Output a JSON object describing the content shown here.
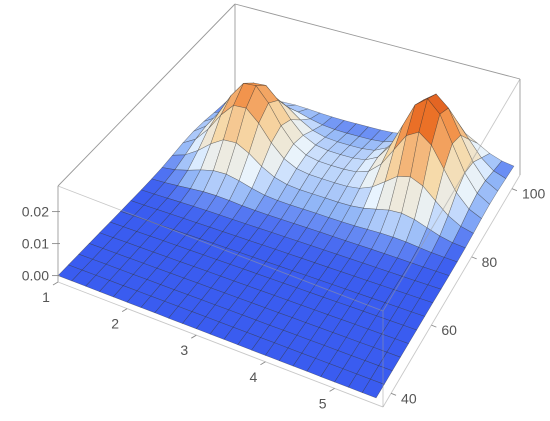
{
  "chart_data": {
    "type": "surface",
    "title": "",
    "xlabel": "",
    "ylabel": "",
    "zlabel": "",
    "xlim": [
      1,
      5.7
    ],
    "ylim": [
      36,
      104
    ],
    "zlim": [
      -0.002,
      0.028
    ],
    "x_ticks": [
      1,
      2,
      3,
      4,
      5
    ],
    "y_ticks": [
      40,
      60,
      80,
      100
    ],
    "z_ticks": [
      0.0,
      0.01,
      0.02
    ],
    "z_tick_labels": [
      "0.00",
      "0.01",
      "0.02"
    ],
    "grid_x": [
      1.0,
      1.2,
      1.4,
      1.6,
      1.8,
      2.0,
      2.2,
      2.4,
      2.6,
      2.8,
      3.0,
      3.2,
      3.4,
      3.6,
      3.8,
      4.0,
      4.2,
      4.4,
      4.6,
      4.8,
      5.0,
      5.2,
      5.4,
      5.6
    ],
    "grid_y": [
      36,
      40,
      44,
      48,
      52,
      56,
      60,
      64,
      68,
      72,
      76,
      80,
      84,
      88,
      92,
      96,
      100,
      104
    ],
    "peaks": [
      {
        "x": 1.9,
        "y": 88,
        "height": 0.021
      },
      {
        "x": 4.6,
        "y": 93,
        "height": 0.028
      }
    ],
    "background_level": 0.0,
    "colors": {
      "floor": "#3a5cf0",
      "low": "#e8f4ff",
      "mid": "#f6d9a8",
      "high": "#f07a2a",
      "peak": "#d9531e"
    }
  }
}
